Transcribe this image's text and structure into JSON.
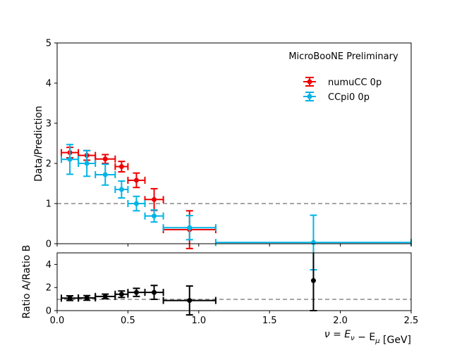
{
  "chart_data": [
    {
      "type": "scatter",
      "panel": "main",
      "annotation": "MicroBooNE Preliminary",
      "xlabel": "",
      "ylabel": "Data/Prediction",
      "xlim": [
        0,
        2.5
      ],
      "ylim": [
        0,
        5
      ],
      "yticks": [
        "0",
        "1",
        "2",
        "3",
        "4",
        "5"
      ],
      "reference_line": 1,
      "legend_position": "upper-right",
      "series": [
        {
          "name": "numuCC 0p",
          "color": "#ee0000",
          "points": [
            {
              "x": 0.09,
              "xerr": 0.06,
              "y": 2.27,
              "yerr": 0.13
            },
            {
              "x": 0.21,
              "xerr": 0.06,
              "y": 2.2,
              "yerr": 0.12
            },
            {
              "x": 0.34,
              "xerr": 0.07,
              "y": 2.11,
              "yerr": 0.11
            },
            {
              "x": 0.455,
              "xerr": 0.045,
              "y": 1.92,
              "yerr": 0.13
            },
            {
              "x": 0.56,
              "xerr": 0.06,
              "y": 1.58,
              "yerr": 0.18
            },
            {
              "x": 0.685,
              "xerr": 0.065,
              "y": 1.1,
              "yerr": 0.27
            },
            {
              "x": 0.935,
              "xerr": 0.185,
              "y": 0.35,
              "yerr": 0.47
            }
          ]
        },
        {
          "name": "CCpi0 0p",
          "color": "#00b4e6",
          "points": [
            {
              "x": 0.09,
              "xerr": 0.06,
              "y": 2.1,
              "yerr": 0.37
            },
            {
              "x": 0.21,
              "xerr": 0.06,
              "y": 2.0,
              "yerr": 0.32
            },
            {
              "x": 0.34,
              "xerr": 0.07,
              "y": 1.72,
              "yerr": 0.26
            },
            {
              "x": 0.455,
              "xerr": 0.045,
              "y": 1.35,
              "yerr": 0.21
            },
            {
              "x": 0.56,
              "xerr": 0.06,
              "y": 1.0,
              "yerr": 0.18
            },
            {
              "x": 0.685,
              "xerr": 0.065,
              "y": 0.69,
              "yerr": 0.15
            },
            {
              "x": 0.935,
              "xerr": 0.185,
              "y": 0.4,
              "yerr": 0.3
            },
            {
              "x": 1.81,
              "xerr": 0.69,
              "y": 0.03,
              "yerr": 0.68
            }
          ]
        }
      ]
    },
    {
      "type": "scatter",
      "panel": "ratio",
      "xlabel": "ν = E_ν − E_μ [GeV]",
      "ylabel": "Ratio A/Ratio B",
      "xlim": [
        0,
        2.5
      ],
      "ylim": [
        0,
        5
      ],
      "xticks": [
        "0.0",
        "0.5",
        "1.0",
        "1.5",
        "2.0",
        "2.5"
      ],
      "yticks": [
        "0",
        "2",
        "4"
      ],
      "reference_line": 1,
      "series": [
        {
          "name": "",
          "color": "#000000",
          "points": [
            {
              "x": 0.09,
              "xerr": 0.06,
              "y": 1.08,
              "yerr": 0.2
            },
            {
              "x": 0.21,
              "xerr": 0.06,
              "y": 1.1,
              "yerr": 0.2
            },
            {
              "x": 0.34,
              "xerr": 0.07,
              "y": 1.23,
              "yerr": 0.2
            },
            {
              "x": 0.455,
              "xerr": 0.045,
              "y": 1.42,
              "yerr": 0.28
            },
            {
              "x": 0.56,
              "xerr": 0.06,
              "y": 1.58,
              "yerr": 0.35
            },
            {
              "x": 0.685,
              "xerr": 0.065,
              "y": 1.58,
              "yerr": 0.6
            },
            {
              "x": 0.935,
              "xerr": 0.185,
              "y": 0.88,
              "yerr": 1.25
            },
            {
              "x": 1.81,
              "xerr": 0,
              "y": 2.6,
              "yerr": 2.6
            }
          ]
        }
      ]
    }
  ]
}
